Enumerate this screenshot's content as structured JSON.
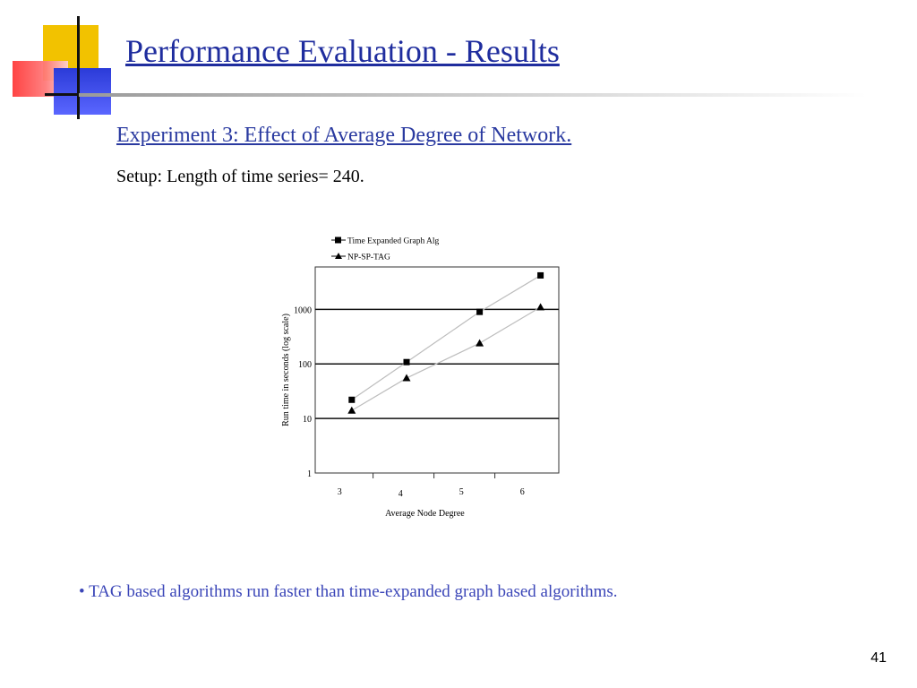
{
  "slide": {
    "title": "Performance Evaluation - Results",
    "experiment": "Experiment 3: Effect of Average Degree of Network.",
    "setup": "Setup: Length of time series= 240.",
    "bullet": "TAG based algorithms run faster than time-expanded graph based algorithms.",
    "bullet_mark": "•",
    "page_number": "41",
    "colors": {
      "title": "#1f2d9e",
      "bullet_text": "#3b46b8"
    }
  },
  "chart_data": {
    "type": "line",
    "xlabel": "Average Node Degree",
    "ylabel": "Run time in seconds (log scale)",
    "yscale": "log",
    "ylim": [
      1,
      6000
    ],
    "ytick_labels": [
      "1",
      "10",
      "100",
      "1000"
    ],
    "yticks": [
      1,
      10,
      100,
      1000
    ],
    "xtick_labels": [
      "3",
      "4",
      "5",
      "6"
    ],
    "xticks": [
      3,
      4,
      5,
      6
    ],
    "grid": "horizontal",
    "legend": "top-left",
    "series": [
      {
        "name": "Time Expanded Graph Alg",
        "marker": "square",
        "x": [
          3.2,
          4.1,
          5.3,
          6.3
        ],
        "y": [
          22,
          108,
          900,
          4200
        ]
      },
      {
        "name": "NP-SP-TAG",
        "marker": "triangle",
        "x": [
          3.2,
          4.1,
          5.3,
          6.3
        ],
        "y": [
          14,
          55,
          240,
          1100
        ]
      }
    ]
  }
}
